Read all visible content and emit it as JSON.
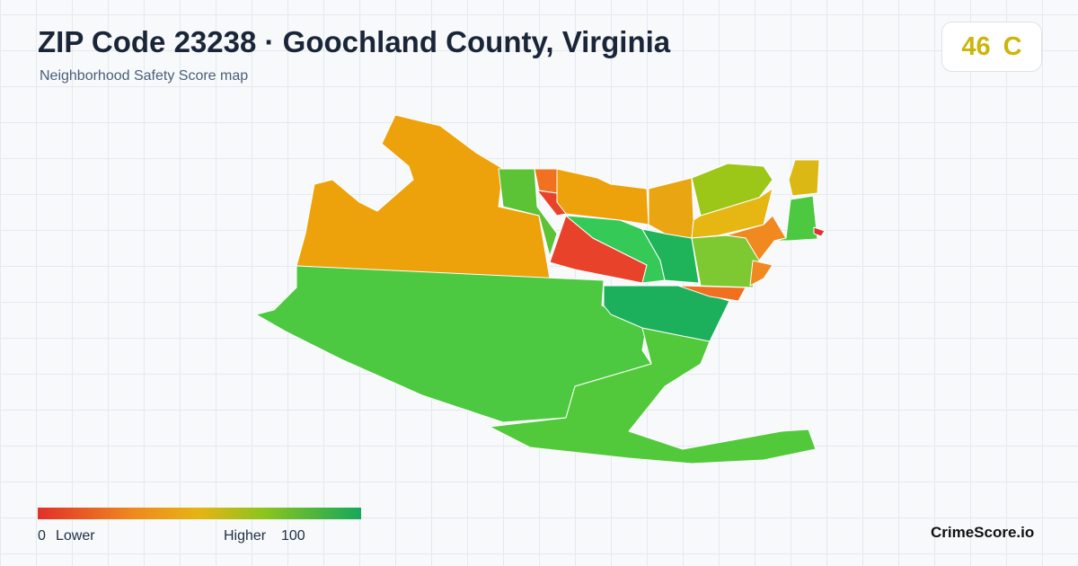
{
  "header": {
    "title": "ZIP Code 23238 · Goochland County, Virginia",
    "subtitle": "Neighborhood Safety Score map"
  },
  "score": {
    "value": 46,
    "grade": "C"
  },
  "legend": {
    "min": 0,
    "min_label": "Lower",
    "max_label": "Higher",
    "max": 100
  },
  "brand": "CrimeScore.io"
}
